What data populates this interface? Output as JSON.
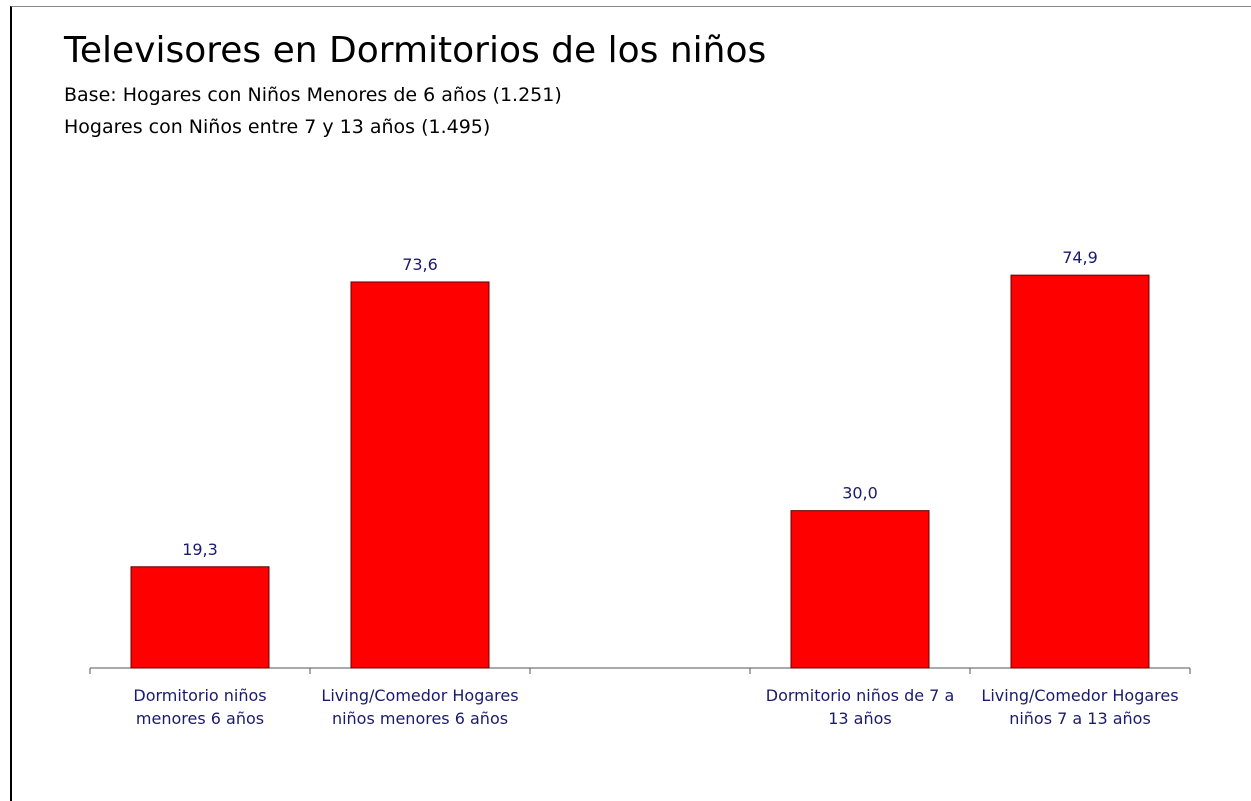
{
  "chart_data": {
    "type": "bar",
    "title": "Televisores en Dormitorios de los niños",
    "subtitle": [
      "Base: Hogares con Niños Menores de 6 años (1.251)",
      "Hogares con Niños entre 7 y 13 años (1.495)"
    ],
    "categories": [
      "Dormitorio niños menores 6 años",
      "Living/Comedor Hogares niños menores 6 años",
      null,
      "Dormitorio niños de 7 a 13 años",
      "Living/Comedor Hogares niños 7 a 13 años"
    ],
    "values": [
      19.3,
      73.6,
      null,
      30.0,
      74.9
    ],
    "value_labels": [
      "19,3",
      "73,6",
      null,
      "30,0",
      "74,9"
    ],
    "color": "#ff0000"
  }
}
